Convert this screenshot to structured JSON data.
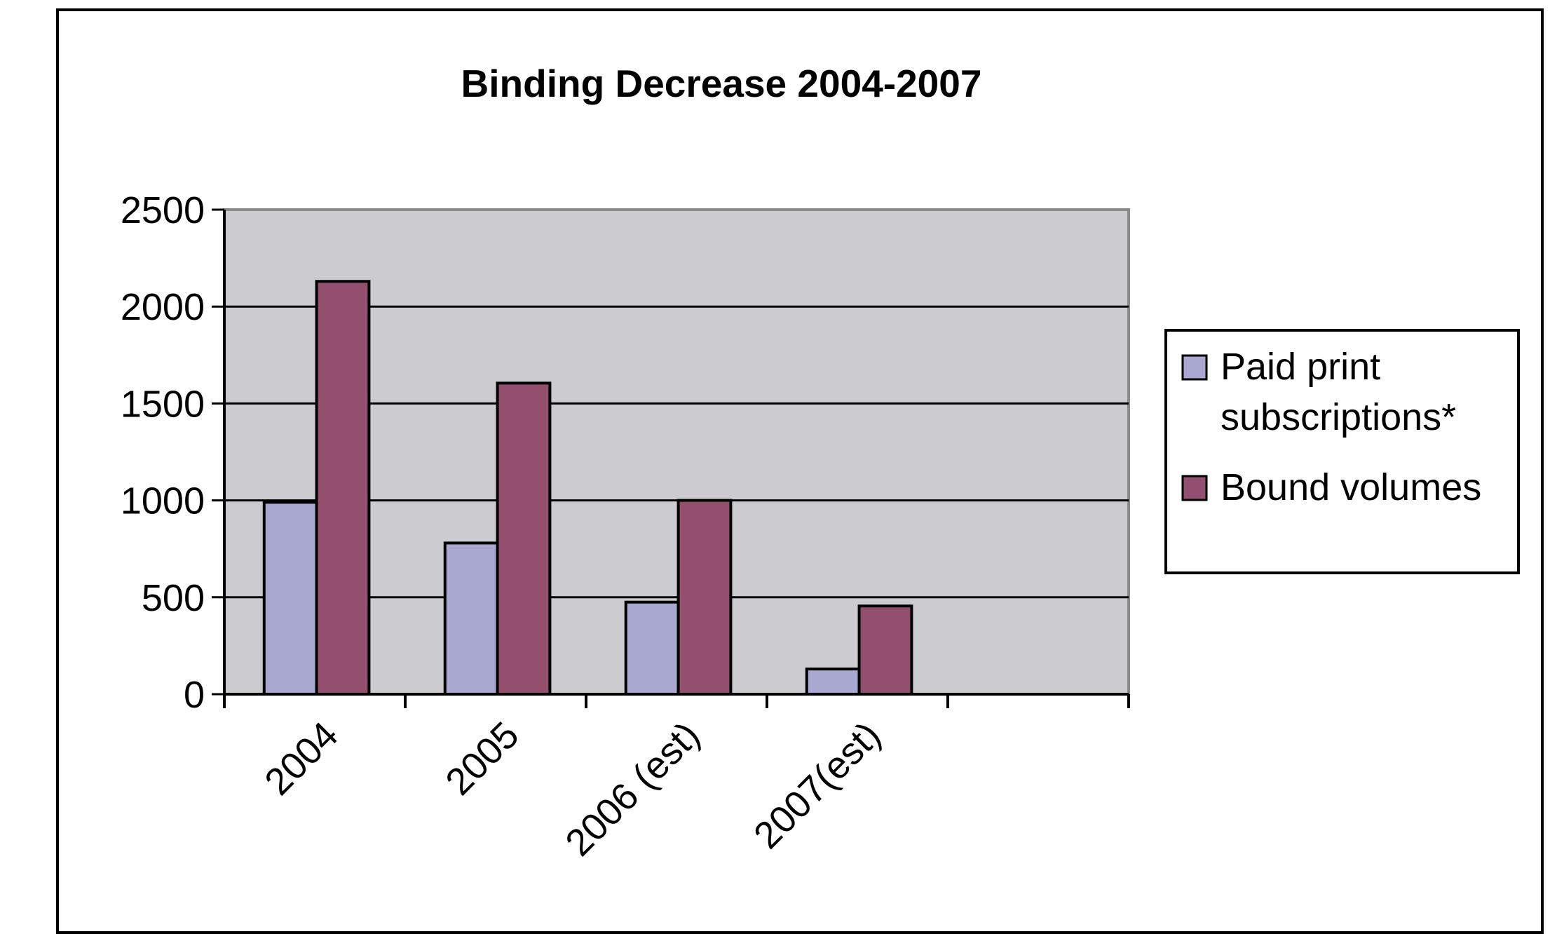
{
  "chart_data": {
    "type": "bar",
    "title": "Binding Decrease 2004-2007",
    "xlabel": "",
    "ylabel": "",
    "categories": [
      "2004",
      "2005",
      "2006 (est)",
      "2007(est)",
      ""
    ],
    "series": [
      {
        "name": "Paid print subscriptions*",
        "color": "#a9a8d0",
        "values": [
          990,
          780,
          475,
          130,
          null
        ]
      },
      {
        "name": "Bound volumes",
        "color": "#93506e",
        "values": [
          2130,
          1605,
          1000,
          455,
          null
        ]
      }
    ],
    "yticks": [
      "0",
      "500",
      "1000",
      "1500",
      "2000",
      "2500"
    ],
    "ylim": [
      0,
      2500
    ],
    "grid": true,
    "plot_background": "#cccbd0",
    "legend_position": "right",
    "legend": {
      "items": [
        {
          "lines": [
            "Paid print",
            "subscriptions*"
          ]
        },
        {
          "lines": [
            "Bound volumes"
          ]
        }
      ]
    }
  }
}
